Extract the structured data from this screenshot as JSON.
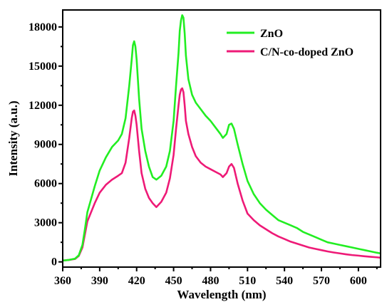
{
  "chart_data": {
    "type": "line",
    "xlabel": "Wavelength (nm)",
    "ylabel": "Intensity (a.u.)",
    "xlim": [
      360,
      618
    ],
    "ylim": [
      -400,
      19300
    ],
    "xticks": [
      360,
      390,
      420,
      450,
      480,
      510,
      540,
      570,
      600
    ],
    "yticks": [
      0,
      3000,
      6000,
      9000,
      12000,
      15000,
      18000
    ],
    "xtick_labels": [
      "360",
      "390",
      "420",
      "450",
      "480",
      "510",
      "540",
      "570",
      "600"
    ],
    "ytick_labels": [
      "0",
      "3000",
      "6000",
      "9000",
      "12000",
      "15000",
      "18000"
    ],
    "grid": false,
    "legend_position": "top-right",
    "series": [
      {
        "name": "ZnO",
        "color": "#22ee22",
        "x": [
          360,
          365,
          370,
          373,
          376,
          378,
          380,
          383,
          386,
          390,
          395,
          400,
          405,
          408,
          411,
          414,
          416,
          417,
          418,
          419,
          420,
          421,
          422,
          424,
          427,
          430,
          433,
          436,
          440,
          444,
          447,
          450,
          452,
          454,
          455,
          456,
          457,
          458,
          459,
          460,
          462,
          465,
          468,
          472,
          476,
          480,
          484,
          488,
          490,
          493,
          495,
          497,
          499,
          502,
          506,
          510,
          515,
          520,
          525,
          530,
          535,
          540,
          545,
          550,
          555,
          560,
          565,
          570,
          575,
          580,
          585,
          590,
          595,
          600,
          605,
          610,
          615,
          618
        ],
        "y": [
          100,
          150,
          250,
          500,
          1300,
          2500,
          3800,
          4800,
          5800,
          7000,
          8000,
          8800,
          9300,
          9800,
          11000,
          13500,
          15500,
          16600,
          16900,
          16500,
          15500,
          14000,
          12500,
          10200,
          8500,
          7300,
          6500,
          6300,
          6600,
          7300,
          8500,
          10800,
          13500,
          16000,
          17700,
          18500,
          18900,
          18700,
          17500,
          15800,
          14000,
          12800,
          12200,
          11700,
          11200,
          10800,
          10300,
          9800,
          9500,
          9800,
          10500,
          10600,
          10200,
          9000,
          7500,
          6200,
          5200,
          4500,
          4000,
          3600,
          3200,
          3000,
          2800,
          2600,
          2300,
          2100,
          1900,
          1700,
          1500,
          1400,
          1300,
          1200,
          1100,
          1000,
          900,
          800,
          700,
          650
        ]
      },
      {
        "name": "C/N-co-doped ZnO",
        "color": "#ee1a77",
        "x": [
          360,
          365,
          370,
          373,
          376,
          378,
          380,
          383,
          386,
          390,
          395,
          400,
          405,
          408,
          411,
          414,
          416,
          417,
          418,
          419,
          420,
          421,
          422,
          424,
          427,
          430,
          433,
          436,
          440,
          444,
          447,
          450,
          452,
          454,
          455,
          456,
          457,
          458,
          459,
          460,
          462,
          465,
          468,
          472,
          476,
          480,
          484,
          488,
          490,
          493,
          495,
          497,
          499,
          502,
          506,
          510,
          515,
          520,
          525,
          530,
          535,
          540,
          545,
          550,
          555,
          560,
          565,
          570,
          575,
          580,
          585,
          590,
          595,
          600,
          605,
          610,
          615,
          618
        ],
        "y": [
          100,
          150,
          220,
          450,
          1100,
          2100,
          3100,
          3800,
          4500,
          5300,
          5900,
          6300,
          6600,
          6800,
          7600,
          9500,
          11000,
          11500,
          11600,
          11200,
          10500,
          9500,
          8500,
          6800,
          5600,
          4900,
          4500,
          4200,
          4600,
          5300,
          6400,
          8200,
          10200,
          12000,
          12800,
          13200,
          13300,
          13000,
          12000,
          10800,
          9800,
          8800,
          8100,
          7600,
          7300,
          7100,
          6900,
          6700,
          6500,
          6800,
          7300,
          7500,
          7200,
          6000,
          4700,
          3700,
          3200,
          2800,
          2500,
          2200,
          1950,
          1750,
          1550,
          1400,
          1250,
          1100,
          1000,
          900,
          800,
          720,
          650,
          580,
          520,
          480,
          430,
          390,
          350,
          320
        ]
      }
    ]
  }
}
